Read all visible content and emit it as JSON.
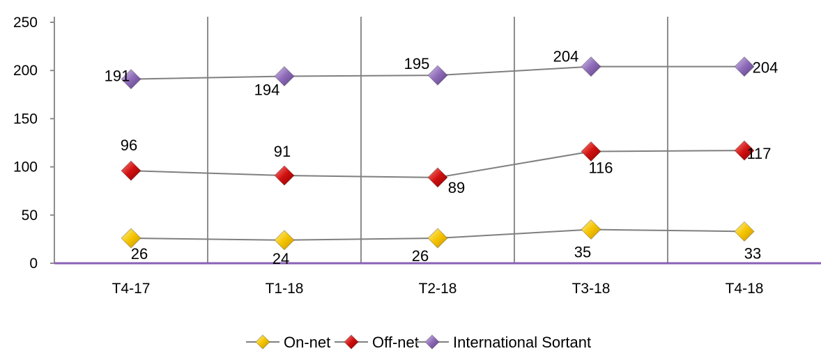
{
  "chart_data": {
    "type": "line",
    "categories": [
      "T4-17",
      "T1-18",
      "T2-18",
      "T3-18",
      "T4-18"
    ],
    "ylim": [
      0,
      250
    ],
    "yticks": [
      0,
      50,
      100,
      150,
      200,
      250
    ],
    "grid": "vertical",
    "legend_position": "bottom",
    "series": [
      {
        "name": "On-net",
        "values": [
          26,
          24,
          26,
          35,
          33
        ],
        "color": "#f5c400"
      },
      {
        "name": "Off-net",
        "values": [
          96,
          91,
          89,
          116,
          117
        ],
        "color": "#d01010"
      },
      {
        "name": "International Sortant",
        "values": [
          191,
          194,
          195,
          204,
          204
        ],
        "color": "#8e6bb8"
      }
    ]
  }
}
